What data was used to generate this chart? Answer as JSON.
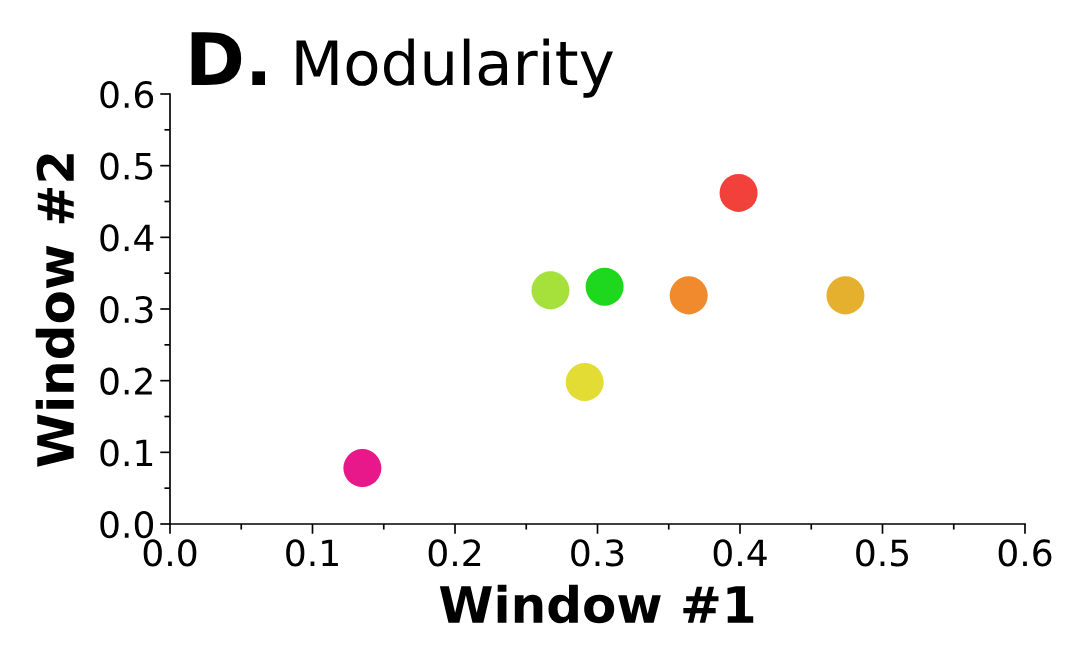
{
  "chart_data": {
    "type": "scatter",
    "title": "D. Modularity",
    "xlabel": "Window #1",
    "ylabel": "Window #2",
    "x": [
      0.135,
      0.267,
      0.291,
      0.305,
      0.364,
      0.399,
      0.474
    ],
    "values": [
      0.078,
      0.326,
      0.198,
      0.331,
      0.319,
      0.462,
      0.319
    ],
    "colors": [
      "#e8178a",
      "#a6e03a",
      "#e3dc35",
      "#1ed81e",
      "#f08a2c",
      "#f2403a",
      "#e5b02e"
    ],
    "xlim": [
      0.0,
      0.6
    ],
    "xticks": [
      {
        "value": 0.0,
        "label": "0.0"
      },
      0.1,
      0.2,
      0.3,
      0.4,
      0.5,
      0.6
    ],
    "ylim": [
      0.0,
      0.6
    ],
    "yticks": [
      {
        "value": 0.0,
        "label": "0.0"
      },
      0.1,
      0.2,
      0.3,
      0.4,
      0.5,
      0.6
    ],
    "marker": "circle",
    "grid": false
  }
}
